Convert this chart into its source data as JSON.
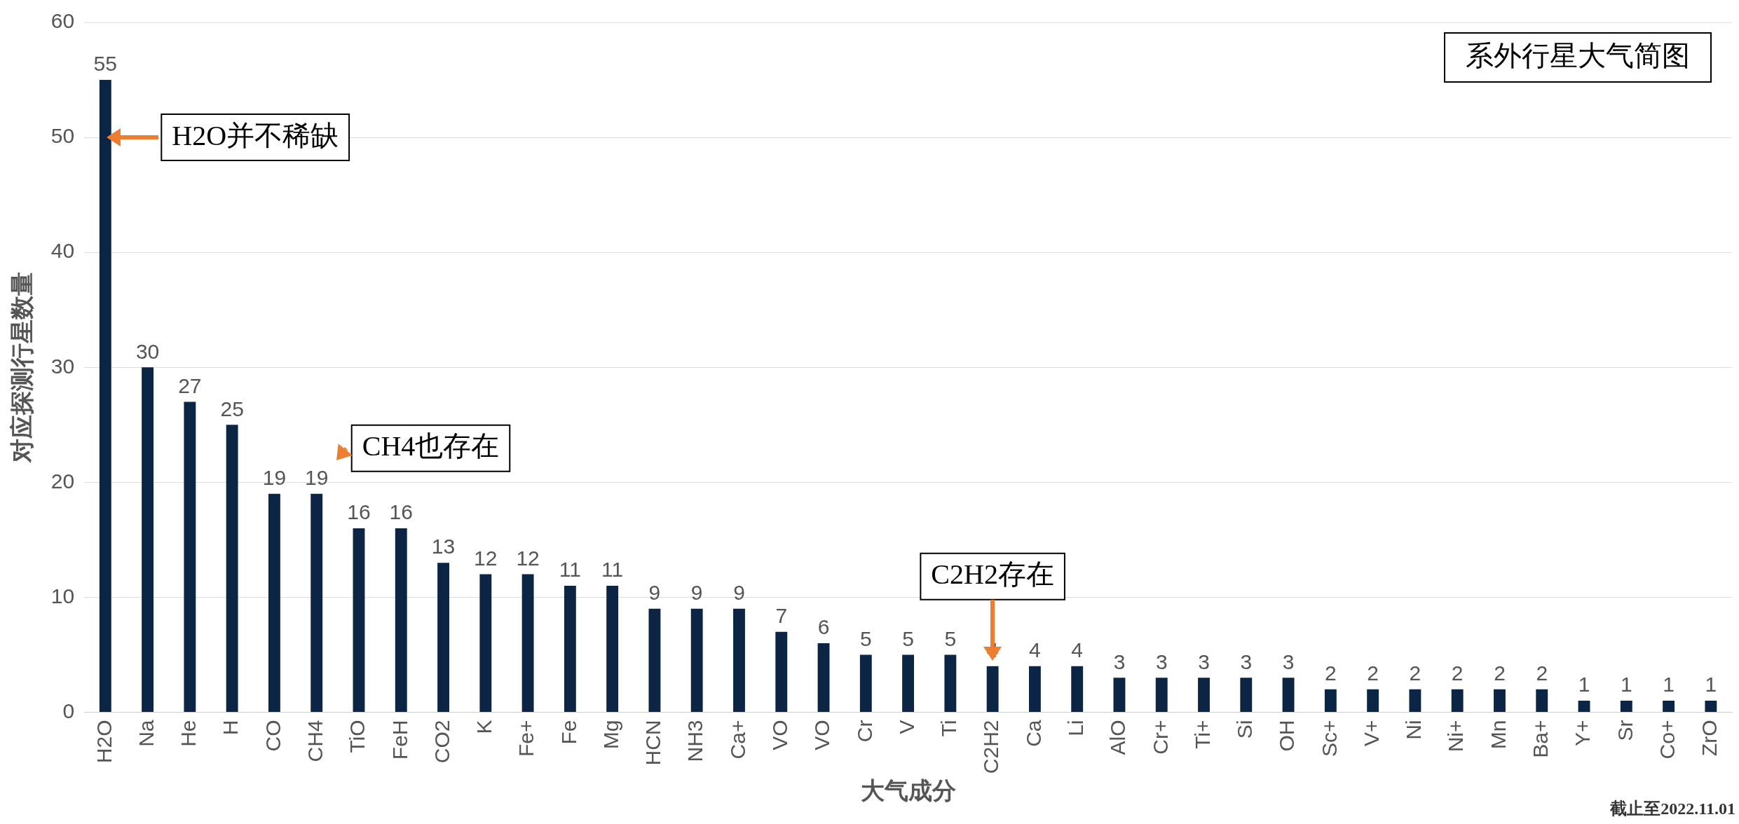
{
  "chart_data": {
    "type": "bar",
    "title": "系外行星大气简图",
    "xlabel": "大气成分",
    "ylabel": "对应探测行星数量",
    "categories": [
      "H2O",
      "Na",
      "He",
      "H",
      "CO",
      "CH4",
      "TiO",
      "FeH",
      "CO2",
      "K",
      "Fe+",
      "Fe",
      "Mg",
      "HCN",
      "NH3",
      "Ca+",
      "VO",
      "VO",
      "Cr",
      "V",
      "Ti",
      "C2H2",
      "Ca",
      "Li",
      "AlO",
      "Cr+",
      "Ti+",
      "Si",
      "OH",
      "Sc+",
      "V+",
      "Ni",
      "Ni+",
      "Mn",
      "Ba+",
      "Y+",
      "Sr",
      "Co+",
      "ZrO"
    ],
    "values": [
      55,
      30,
      27,
      25,
      19,
      19,
      16,
      16,
      13,
      12,
      12,
      11,
      11,
      9,
      9,
      9,
      7,
      6,
      5,
      5,
      5,
      4,
      4,
      4,
      3,
      3,
      3,
      3,
      3,
      2,
      2,
      2,
      2,
      2,
      2,
      1,
      1,
      1,
      1
    ],
    "color": "#0d2545",
    "ylim": [
      0,
      60
    ],
    "yticks": [
      0,
      10,
      20,
      30,
      40,
      50,
      60
    ],
    "grid": "y",
    "data_labels": true,
    "annotations": [
      "H2O并不稀缺",
      {
        "text": "CH4也存在",
        "x": "CH4",
        "y": 19
      },
      {
        "text": "C2H2存在",
        "x": "C2H2",
        "y": 4
      },
      "截止至2022.11.01"
    ]
  }
}
